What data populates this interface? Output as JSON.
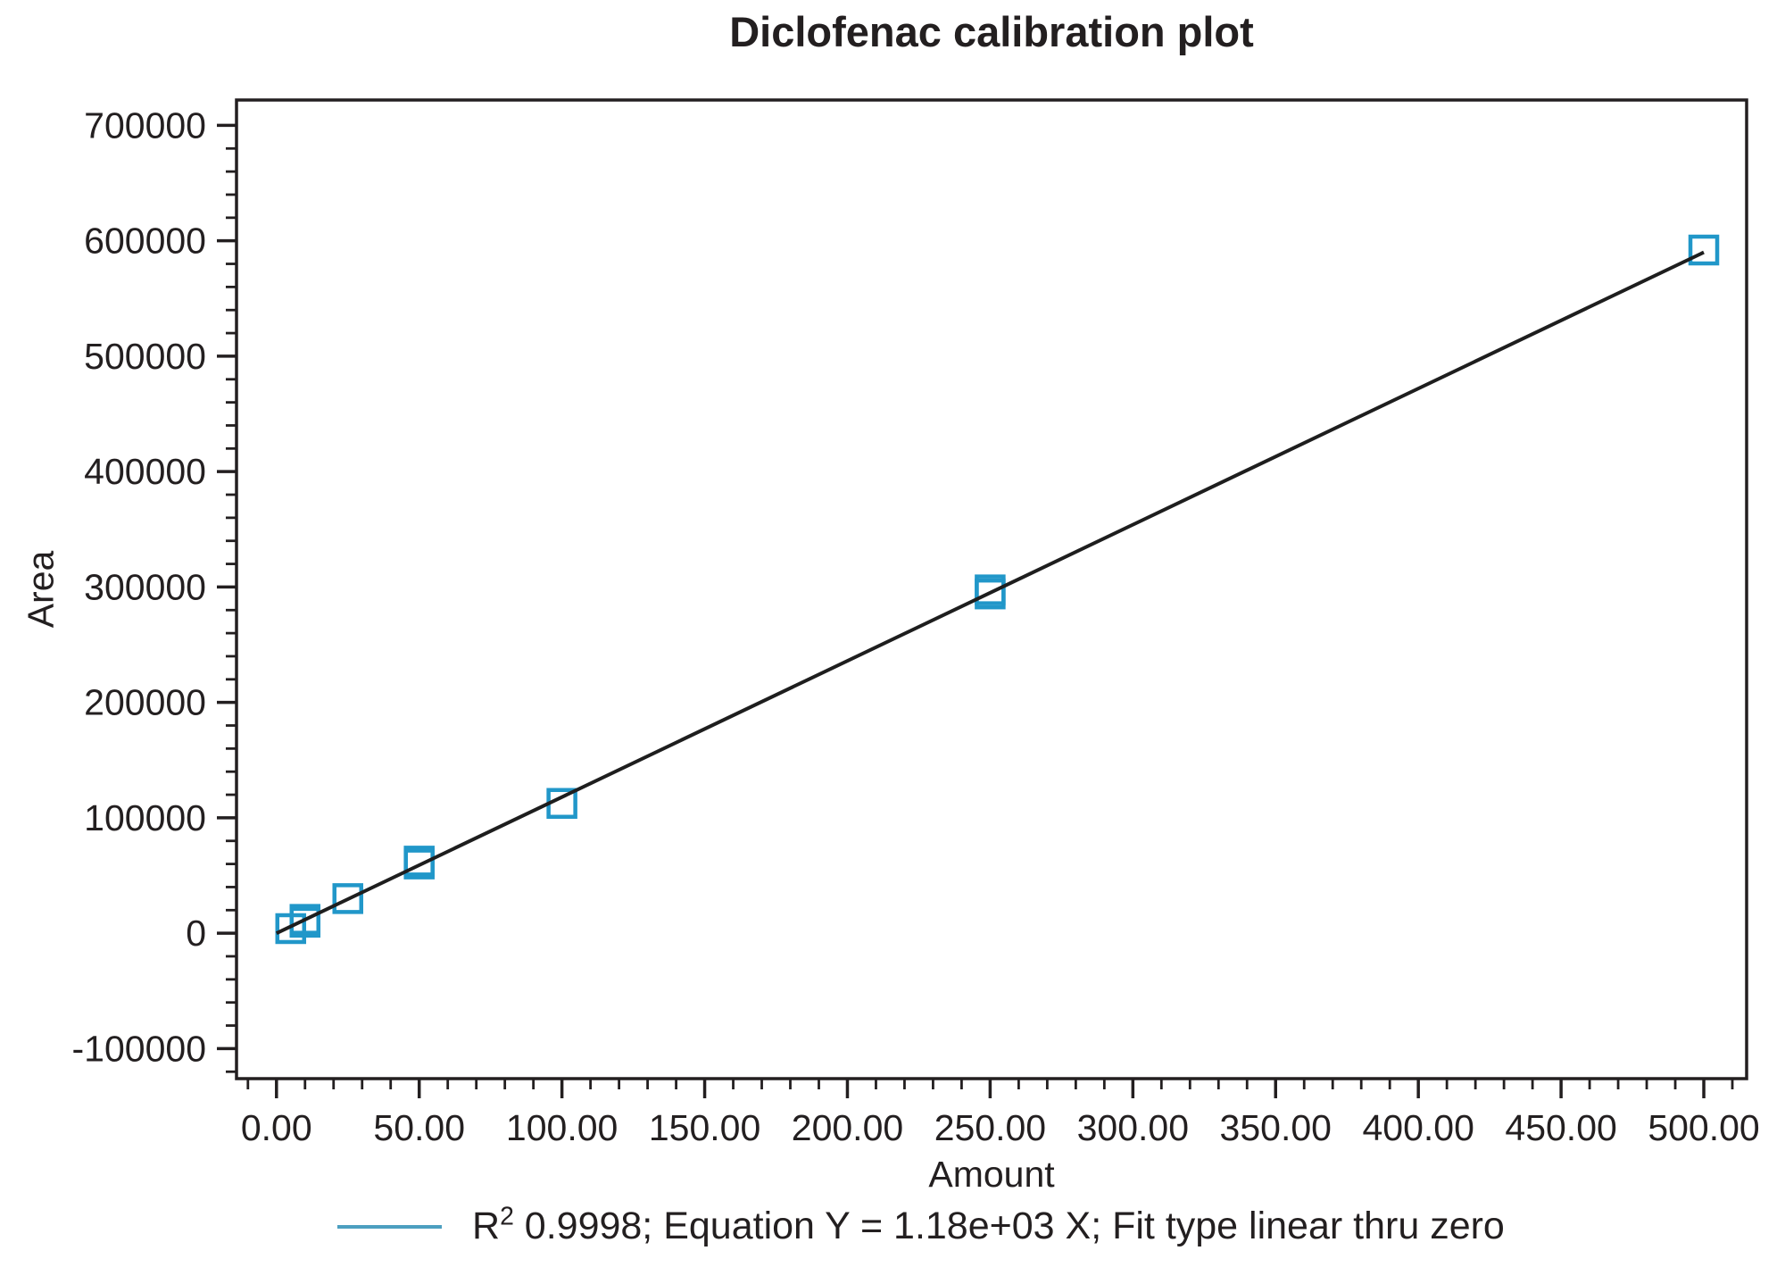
{
  "labels": {
    "title": "Diclofenac calibration plot",
    "x_axis": "Amount",
    "y_axis": "Area"
  },
  "legend": {
    "r_base": "R",
    "r_sup": "2",
    "text_after_sup": " 0.9998; Equation Y = 1.18e+03 X; Fit type linear thru zero"
  },
  "colors": {
    "marker": "#2197C9",
    "fit_line": "#1E1E1E",
    "axis": "#231F20",
    "legend_swatch": "#4C9FC0",
    "text": "#231F20",
    "background": "#FFFFFF"
  },
  "chart_data": {
    "type": "scatter",
    "title": "Diclofenac calibration plot",
    "xlabel": "Amount",
    "ylabel": "Area",
    "xlim": [
      -14,
      515
    ],
    "ylim": [
      -126000,
      722000
    ],
    "grid": false,
    "legend_position": "bottom",
    "x_major_ticks": [
      0,
      50,
      100,
      150,
      200,
      250,
      300,
      350,
      400,
      450,
      500
    ],
    "x_tick_labels": [
      "0.00",
      "50.00",
      "100.00",
      "150.00",
      "200.00",
      "250.00",
      "300.00",
      "350.00",
      "400.00",
      "450.00",
      "500.00"
    ],
    "x_minor_step": 10,
    "x_minor_range": [
      -10,
      510
    ],
    "y_major_ticks": [
      -100000,
      0,
      100000,
      200000,
      300000,
      400000,
      500000,
      600000,
      700000
    ],
    "y_tick_labels": [
      "-100000",
      "0",
      "100000",
      "200000",
      "300000",
      "400000",
      "500000",
      "600000",
      "700000"
    ],
    "y_minor_step": 20000,
    "y_minor_range": [
      -120000,
      700000
    ],
    "points": [
      {
        "amount": 5,
        "area": 4000
      },
      {
        "amount": 10,
        "area": 9500
      },
      {
        "amount": 10,
        "area": 12000
      },
      {
        "amount": 25,
        "area": 30000
      },
      {
        "amount": 50,
        "area": 60000
      },
      {
        "amount": 50,
        "area": 62500
      },
      {
        "amount": 100,
        "area": 112500
      },
      {
        "amount": 250,
        "area": 294000
      },
      {
        "amount": 250,
        "area": 297500
      },
      {
        "amount": 500,
        "area": 592000
      }
    ],
    "fit_line": {
      "fit_type": "linear thru zero",
      "equation": "Y = 1.18e+03 X",
      "slope": 1180,
      "r_squared": "0.9998",
      "x_start": 0,
      "x_end": 500
    }
  }
}
